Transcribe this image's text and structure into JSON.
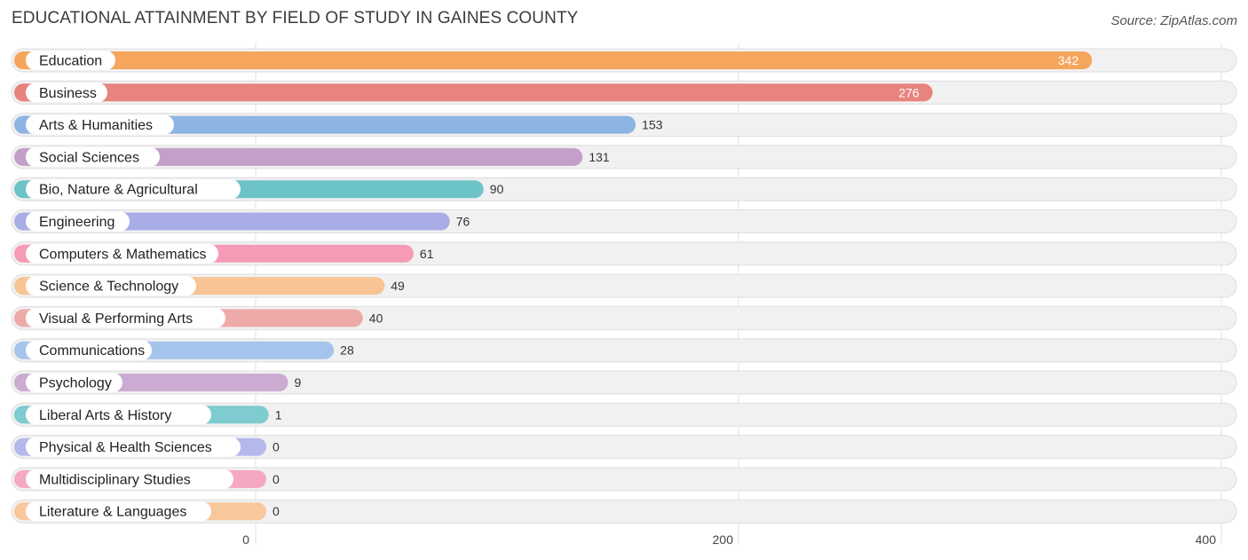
{
  "chart_data": {
    "type": "bar",
    "orientation": "horizontal",
    "title": "EDUCATIONAL ATTAINMENT BY FIELD OF STUDY IN GAINES COUNTY",
    "source": "Source: ZipAtlas.com",
    "xlim": [
      0,
      400
    ],
    "ticks": [
      0,
      200,
      400
    ],
    "categories": [
      "Education",
      "Business",
      "Arts & Humanities",
      "Social Sciences",
      "Bio, Nature & Agricultural",
      "Engineering",
      "Computers & Mathematics",
      "Science & Technology",
      "Visual & Performing Arts",
      "Communications",
      "Psychology",
      "Liberal Arts & History",
      "Physical & Health Sciences",
      "Multidisciplinary Studies",
      "Literature & Languages"
    ],
    "values": [
      342,
      276,
      153,
      131,
      90,
      76,
      61,
      49,
      40,
      28,
      9,
      1,
      0,
      0,
      0
    ],
    "colors": [
      "#f5a55c",
      "#e8837e",
      "#8db4e2",
      "#c3a0ca",
      "#6cc3c8",
      "#a9ade6",
      "#f59bb6",
      "#f8c496",
      "#eeaaa8",
      "#a5c4eb",
      "#cbabd2",
      "#7ecbd0",
      "#b4b8ea",
      "#f5a8c4",
      "#f8c79c"
    ]
  }
}
